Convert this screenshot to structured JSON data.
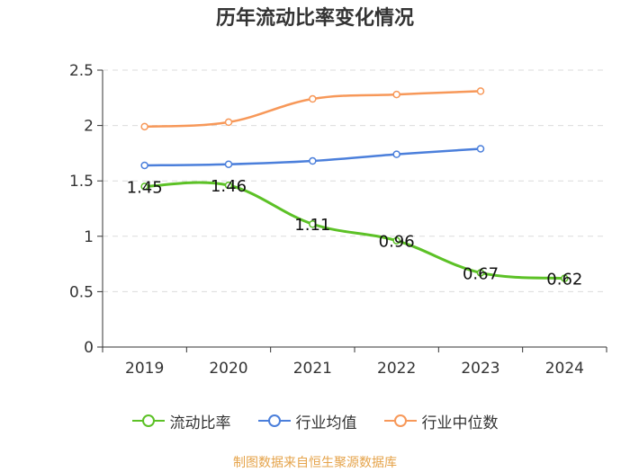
{
  "chart_data": {
    "type": "line",
    "title": "历年流动比率变化情况",
    "categories": [
      "2019",
      "2020",
      "2021",
      "2022",
      "2023",
      "2024"
    ],
    "ylim": [
      0,
      2.5
    ],
    "yticks": [
      "0",
      "0.5",
      "1",
      "1.5",
      "2",
      "2.5"
    ],
    "ytick_values": [
      0,
      0.5,
      1,
      1.5,
      2,
      2.5
    ],
    "grid": true,
    "legend_position": "bottom",
    "series": [
      {
        "name": "流动比率",
        "color": "#5cc126",
        "values": [
          1.45,
          1.46,
          1.11,
          0.96,
          0.67,
          0.62
        ],
        "labels": [
          "1.45",
          "1.46",
          "1.11",
          "0.96",
          "0.67",
          "0.62"
        ]
      },
      {
        "name": "行业均值",
        "color": "#4b7fdb",
        "values": [
          1.64,
          1.65,
          1.68,
          1.74,
          1.79,
          null
        ]
      },
      {
        "name": "行业中位数",
        "color": "#f79859",
        "values": [
          1.99,
          2.03,
          2.24,
          2.28,
          2.31,
          null
        ]
      }
    ]
  },
  "source_text": "制图数据来自恒生聚源数据库",
  "source_color": "#e5a34a"
}
